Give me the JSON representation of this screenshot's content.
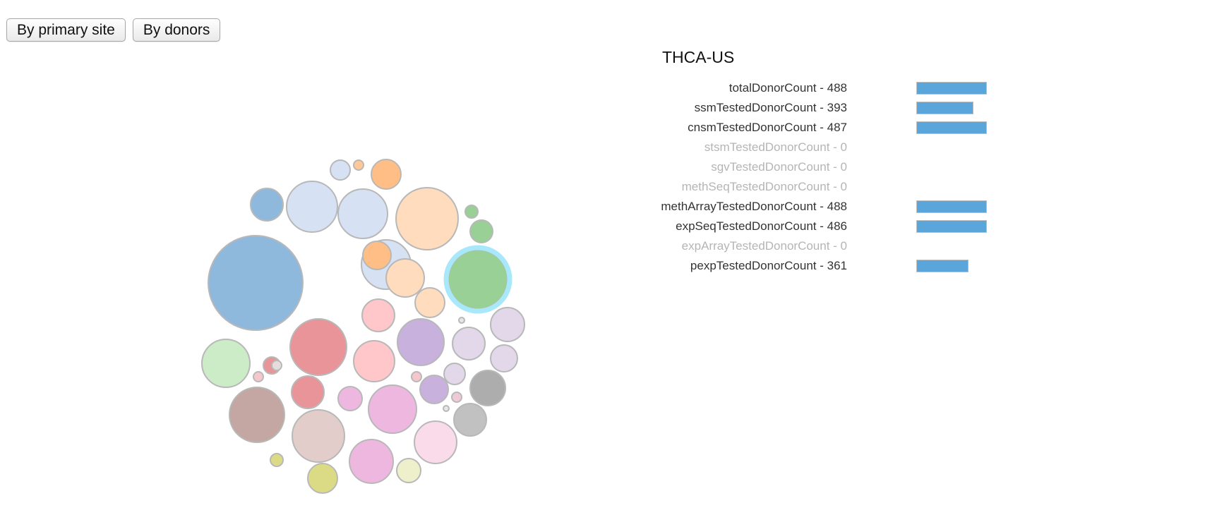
{
  "toolbar": {
    "primary_site_label": "By primary site",
    "donors_label": "By donors"
  },
  "colors": {
    "bar": "#5aa5d9",
    "highlight_ring": "#a8e8fa",
    "bubble_stroke": "#b8b8b8",
    "label_active": "#333333",
    "label_inactive": "#b5b5b5"
  },
  "chart_data": [
    {
      "type": "bubble",
      "title": "",
      "selected_project_color": "#98d095",
      "bubbles": [
        {
          "color": "#8fb9dc",
          "size": 67
        },
        {
          "color": "#8fb9dc",
          "size": 23
        },
        {
          "color": "#d6e2f3",
          "size": 36
        },
        {
          "color": "#d6e2f3",
          "size": 35
        },
        {
          "color": "#d6e2f3",
          "size": 35
        },
        {
          "color": "#d6e2f3",
          "size": 14
        },
        {
          "color": "#ffbe85",
          "size": 21
        },
        {
          "color": "#ffbe85",
          "size": 20
        },
        {
          "color": "#ffc896",
          "size": 7
        },
        {
          "color": "#ffdcbd",
          "size": 44
        },
        {
          "color": "#ffdcbd",
          "size": 27
        },
        {
          "color": "#ffdcbd",
          "size": 21
        },
        {
          "color": "#98d095",
          "size": 42
        },
        {
          "color": "#98d095",
          "size": 16
        },
        {
          "color": "#98d095",
          "size": 9
        },
        {
          "color": "#ccecc7",
          "size": 34
        },
        {
          "color": "#e99498",
          "size": 40
        },
        {
          "color": "#e99498",
          "size": 23
        },
        {
          "color": "#e99498",
          "size": 12
        },
        {
          "color": "#ffc7c9",
          "size": 23
        },
        {
          "color": "#ffc7c9",
          "size": 29
        },
        {
          "color": "#f5c7cd",
          "size": 7
        },
        {
          "color": "#c8b1dd",
          "size": 33
        },
        {
          "color": "#c8b1dd",
          "size": 20
        },
        {
          "color": "#e3d8ea",
          "size": 24
        },
        {
          "color": "#e3d8ea",
          "size": 23
        },
        {
          "color": "#e3d8ea",
          "size": 19
        },
        {
          "color": "#e3d8ea",
          "size": 15
        },
        {
          "color": "#f5c7cd",
          "size": 7
        },
        {
          "color": "#f0c9d7",
          "size": 7
        },
        {
          "color": "#c4a6a2",
          "size": 39
        },
        {
          "color": "#e3cdcb",
          "size": 37
        },
        {
          "color": "#e6dcdc",
          "size": 7
        },
        {
          "color": "#edb7e0",
          "size": 17
        },
        {
          "color": "#edb7e0",
          "size": 34
        },
        {
          "color": "#edb7e0",
          "size": 31
        },
        {
          "color": "#fadbe9",
          "size": 30
        },
        {
          "color": "#adadad",
          "size": 25
        },
        {
          "color": "#c1c1c1",
          "size": 23
        },
        {
          "color": "#dcdb85",
          "size": 21
        },
        {
          "color": "#dcdb85",
          "size": 9
        },
        {
          "color": "#eeefcb",
          "size": 17
        },
        {
          "color": "#e6e6e6",
          "size": 4
        },
        {
          "color": "#e6e6e6",
          "size": 4
        }
      ]
    },
    {
      "type": "bar",
      "title": "THCA-US",
      "xlim": [
        0,
        488
      ],
      "items": [
        {
          "name": "totalDonorCount",
          "value": 488,
          "label": "totalDonorCount - 488"
        },
        {
          "name": "ssmTestedDonorCount",
          "value": 393,
          "label": "ssmTestedDonorCount - 393"
        },
        {
          "name": "cnsmTestedDonorCount",
          "value": 487,
          "label": "cnsmTestedDonorCount - 487"
        },
        {
          "name": "stsmTestedDonorCount",
          "value": 0,
          "label": "stsmTestedDonorCount - 0"
        },
        {
          "name": "sgvTestedDonorCount",
          "value": 0,
          "label": "sgvTestedDonorCount - 0"
        },
        {
          "name": "methSeqTestedDonorCount",
          "value": 0,
          "label": "methSeqTestedDonorCount - 0"
        },
        {
          "name": "methArrayTestedDonorCount",
          "value": 488,
          "label": "methArrayTestedDonorCount - 488"
        },
        {
          "name": "expSeqTestedDonorCount",
          "value": 486,
          "label": "expSeqTestedDonorCount - 486"
        },
        {
          "name": "expArrayTestedDonorCount",
          "value": 0,
          "label": "expArrayTestedDonorCount - 0"
        },
        {
          "name": "pexpTestedDonorCount",
          "value": 361,
          "label": "pexpTestedDonorCount - 361"
        }
      ]
    }
  ]
}
